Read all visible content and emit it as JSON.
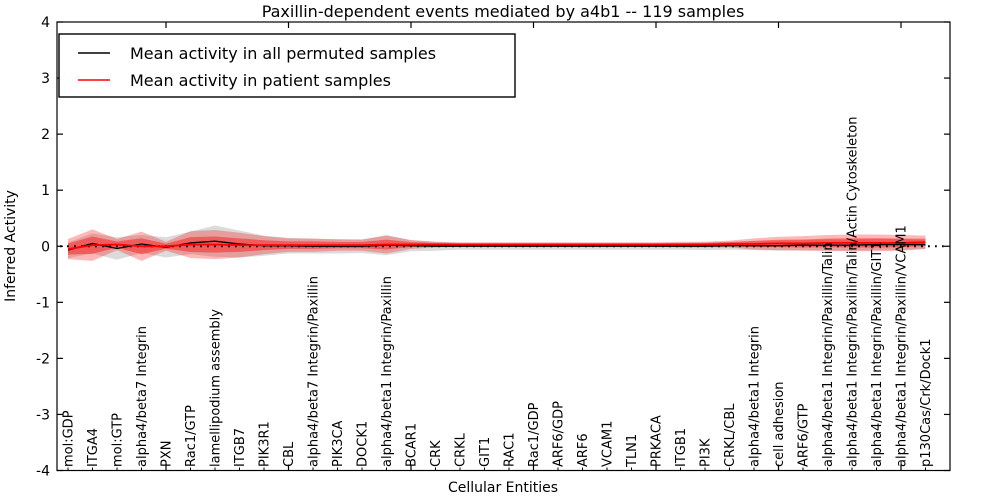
{
  "title": "Paxillin-dependent events mediated by a4b1 -- 119 samples",
  "axes": {
    "xlabel": "Cellular Entities",
    "ylabel": "Inferred Activity"
  },
  "legend": {
    "position": "upper left",
    "items": [
      {
        "label": "Mean activity in all permuted samples",
        "color": "#000000"
      },
      {
        "label": "Mean activity in patient samples",
        "color": "#ff0000"
      }
    ]
  },
  "chart_data": {
    "type": "line",
    "title": "Paxillin-dependent events mediated by a4b1 -- 119 samples",
    "xlabel": "Cellular Entities",
    "ylabel": "Inferred Activity",
    "ylim": [
      -4,
      4
    ],
    "yticks": [
      4,
      3,
      2,
      1,
      0,
      -1,
      -2,
      -3,
      -4
    ],
    "grid": false,
    "legend_position": "upper left",
    "zero_line_style": "black dotted",
    "categories": [
      "mol:GDP",
      "ITGA4",
      "mol:GTP",
      "alpha4/beta7 Integrin",
      "PXN",
      "Rac1/GTP",
      "lamellipodium assembly",
      "ITGB7",
      "PIK3R1",
      "CBL",
      "alpha4/beta7 Integrin/Paxillin",
      "PIK3CA",
      "DOCK1",
      "alpha4/beta1 Integrin/Paxillin",
      "BCAR1",
      "CRK",
      "CRKL",
      "GIT1",
      "RAC1",
      "Rac1/GDP",
      "ARF6/GDP",
      "ARF6",
      "VCAM1",
      "TLN1",
      "PRKACA",
      "ITGB1",
      "PI3K",
      "CRKL/CBL",
      "alpha4/beta1 Integrin",
      "cell adhesion",
      "ARF6/GTP",
      "alpha4/beta1 Integrin/Paxillin/Talin",
      "alpha4/beta1 Integrin/Paxillin/Talin/Actin Cytoskeleton",
      "alpha4/beta1 Integrin/Paxillin/GIT1",
      "alpha4/beta1 Integrin/Paxillin/VCAM1",
      "p130Cas/Crk/Dock1"
    ],
    "series": [
      {
        "name": "Mean activity in all permuted samples",
        "color": "#000000",
        "band_color": "#a0a0a0",
        "values": [
          -0.07,
          0.05,
          -0.04,
          0.04,
          -0.02,
          0.06,
          0.09,
          0.04,
          0.01,
          0.01,
          0.0,
          0.0,
          0.0,
          0.02,
          0.01,
          0.0,
          0.0,
          0.0,
          0.0,
          0.0,
          0.0,
          0.0,
          0.0,
          0.0,
          0.0,
          0.0,
          0.0,
          0.01,
          0.01,
          0.01,
          0.02,
          0.02,
          0.02,
          0.03,
          0.03,
          0.03
        ],
        "band_halfwidth": [
          0.14,
          0.18,
          0.2,
          0.16,
          0.18,
          0.2,
          0.28,
          0.24,
          0.18,
          0.14,
          0.13,
          0.13,
          0.12,
          0.18,
          0.1,
          0.08,
          0.06,
          0.06,
          0.06,
          0.06,
          0.06,
          0.06,
          0.06,
          0.06,
          0.06,
          0.06,
          0.07,
          0.07,
          0.08,
          0.09,
          0.09,
          0.1,
          0.1,
          0.1,
          0.1,
          0.08
        ]
      },
      {
        "name": "Mean activity in patient samples",
        "color": "#ff0000",
        "band_color": "#ff0000",
        "values": [
          -0.05,
          0.02,
          0.03,
          0.0,
          0.0,
          0.03,
          0.03,
          0.02,
          0.02,
          0.02,
          0.02,
          0.02,
          0.02,
          0.03,
          0.03,
          0.03,
          0.03,
          0.03,
          0.03,
          0.03,
          0.03,
          0.03,
          0.03,
          0.03,
          0.03,
          0.03,
          0.03,
          0.04,
          0.04,
          0.05,
          0.05,
          0.06,
          0.06,
          0.06,
          0.06,
          0.07
        ],
        "band_halfwidth": [
          0.18,
          0.28,
          0.1,
          0.26,
          0.08,
          0.24,
          0.26,
          0.22,
          0.16,
          0.12,
          0.12,
          0.1,
          0.1,
          0.16,
          0.08,
          0.05,
          0.04,
          0.04,
          0.04,
          0.04,
          0.04,
          0.04,
          0.04,
          0.04,
          0.04,
          0.05,
          0.05,
          0.06,
          0.1,
          0.12,
          0.13,
          0.14,
          0.15,
          0.15,
          0.14,
          0.12
        ]
      }
    ]
  }
}
